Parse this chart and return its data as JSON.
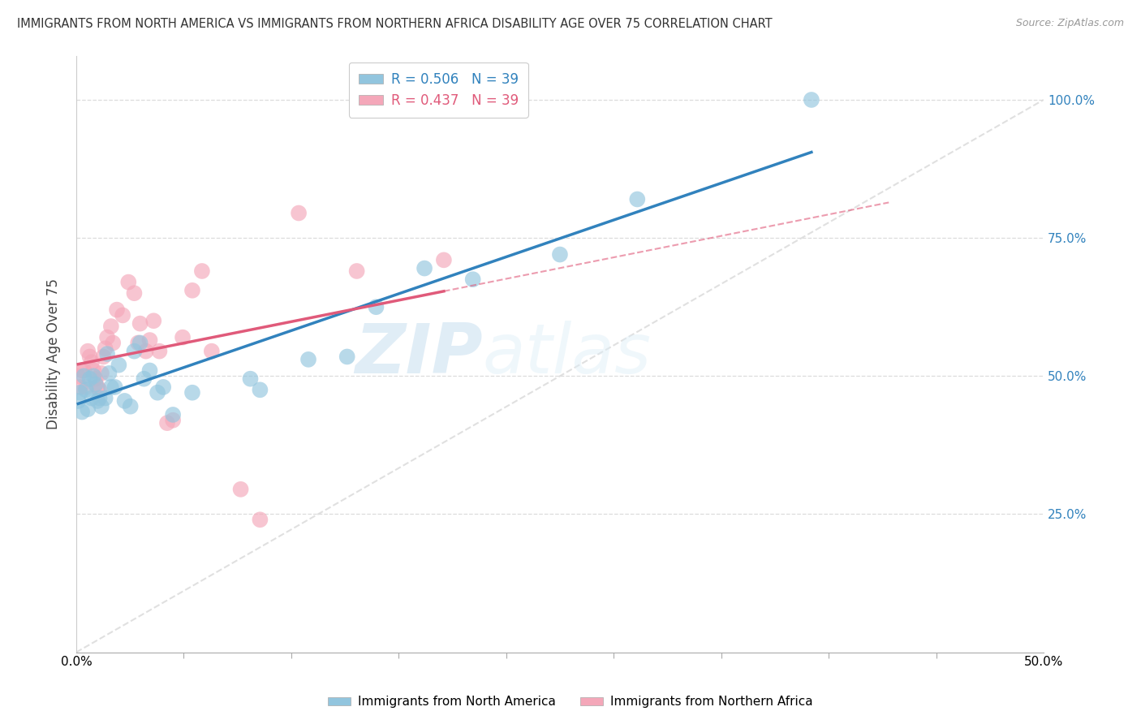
{
  "title": "IMMIGRANTS FROM NORTH AMERICA VS IMMIGRANTS FROM NORTHERN AFRICA DISABILITY AGE OVER 75 CORRELATION CHART",
  "source": "Source: ZipAtlas.com",
  "ylabel": "Disability Age Over 75",
  "r_blue": 0.506,
  "n_blue": 39,
  "r_pink": 0.437,
  "n_pink": 39,
  "blue_color": "#92c5de",
  "pink_color": "#f4a7b9",
  "blue_line_color": "#3182bd",
  "pink_line_color": "#e05a7a",
  "diagonal_color": "#dddddd",
  "watermark_zip": "ZIP",
  "watermark_atlas": "atlas",
  "xlim": [
    0.0,
    0.5
  ],
  "ylim": [
    0.0,
    1.08
  ],
  "yticks": [
    0.25,
    0.5,
    0.75,
    1.0
  ],
  "ytick_labels": [
    "25.0%",
    "50.0%",
    "75.0%",
    "100.0%"
  ],
  "xtick_labels_bottom": [
    "0.0%",
    "",
    "",
    "",
    "",
    "",
    "",
    "",
    "",
    "50.0%"
  ],
  "legend_blue": "Immigrants from North America",
  "legend_pink": "Immigrants from Northern Africa",
  "background_color": "#ffffff",
  "grid_color": "#d9d9d9",
  "blue_x": [
    0.001,
    0.002,
    0.003,
    0.004,
    0.005,
    0.006,
    0.007,
    0.008,
    0.009,
    0.01,
    0.011,
    0.012,
    0.013,
    0.015,
    0.016,
    0.017,
    0.018,
    0.02,
    0.022,
    0.025,
    0.028,
    0.03,
    0.033,
    0.035,
    0.038,
    0.042,
    0.045,
    0.05,
    0.06,
    0.09,
    0.095,
    0.12,
    0.14,
    0.155,
    0.18,
    0.205,
    0.25,
    0.29,
    0.38
  ],
  "blue_y": [
    0.455,
    0.47,
    0.435,
    0.5,
    0.475,
    0.44,
    0.495,
    0.46,
    0.5,
    0.485,
    0.455,
    0.46,
    0.445,
    0.46,
    0.54,
    0.505,
    0.48,
    0.48,
    0.52,
    0.455,
    0.445,
    0.545,
    0.56,
    0.495,
    0.51,
    0.47,
    0.48,
    0.43,
    0.47,
    0.495,
    0.475,
    0.53,
    0.535,
    0.625,
    0.695,
    0.675,
    0.72,
    0.82,
    1.0
  ],
  "pink_x": [
    0.001,
    0.002,
    0.003,
    0.004,
    0.005,
    0.006,
    0.007,
    0.008,
    0.009,
    0.01,
    0.011,
    0.012,
    0.013,
    0.014,
    0.015,
    0.016,
    0.018,
    0.019,
    0.021,
    0.024,
    0.027,
    0.03,
    0.032,
    0.033,
    0.036,
    0.038,
    0.04,
    0.043,
    0.047,
    0.05,
    0.055,
    0.06,
    0.065,
    0.07,
    0.085,
    0.095,
    0.115,
    0.145,
    0.19
  ],
  "pink_y": [
    0.5,
    0.48,
    0.51,
    0.51,
    0.48,
    0.545,
    0.535,
    0.525,
    0.51,
    0.495,
    0.48,
    0.475,
    0.505,
    0.535,
    0.55,
    0.57,
    0.59,
    0.56,
    0.62,
    0.61,
    0.67,
    0.65,
    0.56,
    0.595,
    0.545,
    0.565,
    0.6,
    0.545,
    0.415,
    0.42,
    0.57,
    0.655,
    0.69,
    0.545,
    0.295,
    0.24,
    0.795,
    0.69,
    0.71
  ]
}
